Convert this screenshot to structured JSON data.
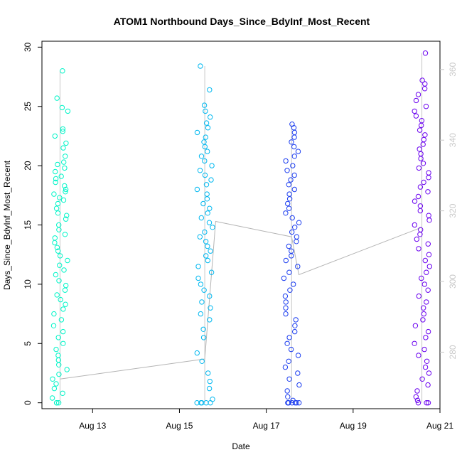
{
  "chart_data": {
    "type": "scatter",
    "title": "ATOM1 Northbound Days_Since_BdyInf_Most_Recent",
    "xlabel": "Date",
    "ylabel": "Days_Since_BdyInf_Most_Recent",
    "x_axis": {
      "type": "date",
      "range": [
        "2024-08-11T20:00",
        "2024-08-21T00:00"
      ],
      "tick_labels": [
        "Aug 13",
        "Aug 15",
        "Aug 17",
        "Aug 19",
        "Aug 21"
      ],
      "tick_dates": [
        "2024-08-13",
        "2024-08-15",
        "2024-08-17",
        "2024-08-19",
        "2024-08-21"
      ]
    },
    "y_axis_left": {
      "range": [
        -0.5,
        30.5
      ],
      "ticks": [
        0,
        5,
        10,
        15,
        20,
        25,
        30
      ]
    },
    "y_axis_right": {
      "range": [
        264,
        368
      ],
      "ticks": [
        280,
        300,
        320,
        340,
        360
      ],
      "color": "#c8c8c8"
    },
    "grid": false,
    "marker": "open-circle",
    "series": [
      {
        "date": "2024-08-12T06:00",
        "color": "#00f5c8",
        "y_range": [
          0,
          28
        ],
        "points": [
          28,
          25.7,
          24.9,
          24.6,
          23.1,
          22.9,
          22.5,
          21.9,
          21.5,
          20.8,
          20.3,
          20.1,
          19.8,
          19.5,
          19.1,
          18.9,
          18.6,
          18.3,
          18.0,
          17.8,
          17.6,
          17.3,
          17.1,
          16.8,
          16.4,
          16.0,
          15.8,
          15.5,
          15.0,
          14.6,
          14.2,
          13.9,
          13.5,
          13.1,
          12.8,
          12.4,
          12.0,
          11.6,
          11.2,
          10.8,
          10.3,
          9.9,
          9.5,
          9.1,
          8.7,
          8.3,
          7.9,
          7.5,
          7.0,
          6.5,
          6.0,
          5.5,
          5.0,
          4.5,
          4.0,
          3.6,
          3.2,
          2.8,
          2.4,
          2.0,
          1.6,
          1.2,
          0.8,
          0.4,
          0,
          0,
          0
        ]
      },
      {
        "date": "2024-08-15T14:00",
        "color": "#00b8f0",
        "y_range": [
          0,
          28.4
        ],
        "points": [
          28.4,
          26.4,
          25.1,
          24.6,
          24.1,
          23.6,
          23.2,
          22.8,
          22.4,
          22.0,
          21.6,
          21.2,
          20.8,
          20.4,
          20.0,
          19.6,
          19.2,
          18.8,
          18.4,
          18.0,
          17.6,
          17.2,
          16.8,
          16.4,
          16.0,
          15.6,
          15.2,
          14.8,
          14.4,
          14.0,
          13.6,
          13.2,
          12.8,
          12.4,
          12.0,
          11.5,
          11.0,
          10.5,
          10.0,
          9.5,
          9.0,
          8.5,
          8.0,
          7.5,
          7.0,
          6.2,
          5.5,
          4.2,
          3.5,
          2.5,
          1.8,
          1.2,
          0.3,
          0,
          0,
          0,
          0,
          0
        ]
      },
      {
        "date": "2024-08-17T14:00",
        "color": "#1a3cf0",
        "y_range": [
          0,
          23.5
        ],
        "points": [
          23.5,
          23.2,
          22.8,
          22.4,
          22.0,
          21.6,
          21.2,
          20.8,
          20.4,
          20.0,
          19.6,
          19.2,
          18.8,
          18.4,
          18.0,
          17.6,
          17.2,
          16.8,
          16.4,
          16.0,
          15.6,
          15.2,
          14.8,
          14.4,
          14.0,
          13.6,
          13.2,
          12.8,
          12.4,
          12.0,
          11.5,
          11.0,
          10.5,
          10.0,
          9.5,
          9.0,
          8.5,
          8.0,
          7.5,
          7.0,
          6.5,
          6.0,
          5.5,
          5.0,
          4.5,
          4.0,
          3.5,
          3.0,
          2.5,
          2.0,
          1.5,
          1.0,
          0.5,
          0.2,
          0,
          0,
          0,
          0,
          0,
          0,
          0
        ]
      },
      {
        "date": "2024-08-20T14:00",
        "color": "#6a00f0",
        "y_range": [
          0,
          29.5
        ],
        "points": [
          29.5,
          27.2,
          26.9,
          26.5,
          26.0,
          25.5,
          25.0,
          24.6,
          24.2,
          23.8,
          23.4,
          23.0,
          22.6,
          22.2,
          21.8,
          21.4,
          21.0,
          20.6,
          20.2,
          19.8,
          19.4,
          19.0,
          18.6,
          18.2,
          17.8,
          17.4,
          17.0,
          16.6,
          16.2,
          15.8,
          15.4,
          15.0,
          14.6,
          14.2,
          13.8,
          13.4,
          13.0,
          12.5,
          12.0,
          11.5,
          11.0,
          10.5,
          10.0,
          9.5,
          9.0,
          8.5,
          8.0,
          7.5,
          7.0,
          6.5,
          6.0,
          5.5,
          5.0,
          4.5,
          4.0,
          3.5,
          3.0,
          2.5,
          2.0,
          1.5,
          1.0,
          0.5,
          0.2,
          0,
          0,
          0
        ]
      }
    ],
    "connector_line": {
      "color": "#b4b4b4",
      "points": [
        {
          "date": "2024-08-12T06:00",
          "y": 2.0
        },
        {
          "date": "2024-08-15T14:00",
          "y": 3.7
        },
        {
          "date": "2024-08-15T20:00",
          "y": 15.3
        },
        {
          "date": "2024-08-17T14:00",
          "y": 14.0
        },
        {
          "date": "2024-08-17T18:00",
          "y": 10.8
        },
        {
          "date": "2024-08-20T14:00",
          "y": 14.8
        }
      ]
    }
  }
}
